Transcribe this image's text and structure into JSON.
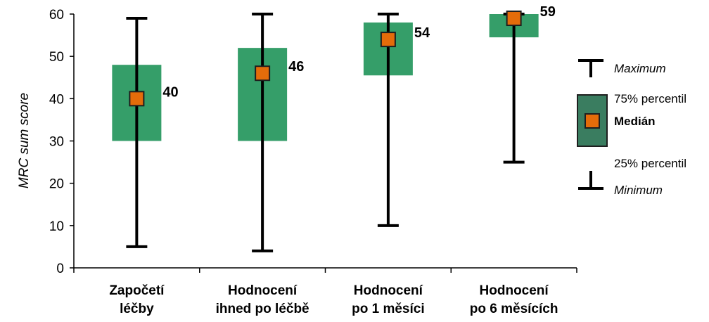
{
  "chart_data": {
    "type": "box",
    "ylabel": "MRC sum score",
    "ylim": [
      0,
      60
    ],
    "yticks": [
      "0",
      "10",
      "20",
      "30",
      "40",
      "50",
      "60"
    ],
    "categories": [
      [
        "Započetí",
        "léčby"
      ],
      [
        "Hodnocení",
        "ihned po léčbě"
      ],
      [
        "Hodnocení",
        "po 1 měsíci"
      ],
      [
        "Hodnocení",
        "po 6 měsících"
      ]
    ],
    "boxes": [
      {
        "min": 5,
        "q1": 30,
        "median": 40,
        "q3": 48,
        "max": 59,
        "label": "40"
      },
      {
        "min": 4,
        "q1": 30,
        "median": 46,
        "q3": 52,
        "max": 60,
        "label": "46"
      },
      {
        "min": 10,
        "q1": 45.5,
        "median": 54,
        "q3": 58,
        "max": 60,
        "label": "54"
      },
      {
        "min": 25,
        "q1": 54.5,
        "median": 59,
        "q3": 60,
        "max": 60,
        "label": "59"
      }
    ],
    "colors": {
      "box": "#359e69",
      "median": "#e46c0a",
      "median_border": "#1f1f1f",
      "whisker": "#000000",
      "legend_box": "#3a7d60"
    },
    "legend": {
      "maximum": "Maximum",
      "q3": "75% percentil",
      "median": "Medián",
      "q1": "25% percentil",
      "minimum": "Minimum"
    }
  }
}
